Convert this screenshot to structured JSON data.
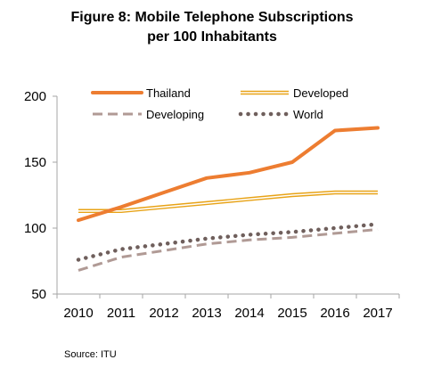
{
  "chart_data": {
    "type": "line",
    "title_line1": "Figure 8: Mobile Telephone Subscriptions",
    "title_line2": "per 100 Inhabitants",
    "source": "Source: ITU",
    "x": [
      "2010",
      "2011",
      "2012",
      "2013",
      "2014",
      "2015",
      "2016",
      "2017"
    ],
    "ylim": [
      50,
      200
    ],
    "yticks": [
      50,
      100,
      150,
      200
    ],
    "series": [
      {
        "name": "Thailand",
        "color": "#ed7d31",
        "style": "solid-thick",
        "values": [
          106,
          116,
          127,
          138,
          142,
          150,
          174,
          176
        ]
      },
      {
        "name": "Developed",
        "color": "#e8a317",
        "style": "double",
        "values": [
          113,
          113,
          116,
          119,
          122,
          125,
          127,
          127
        ]
      },
      {
        "name": "Developing",
        "color": "#b09a95",
        "style": "dashed",
        "values": [
          68,
          78,
          83,
          88,
          91,
          93,
          96,
          99
        ]
      },
      {
        "name": "World",
        "color": "#6f5f5c",
        "style": "dotted",
        "values": [
          76,
          84,
          88,
          92,
          95,
          97,
          100,
          103
        ]
      }
    ],
    "legend_position": "top, inside plot"
  }
}
